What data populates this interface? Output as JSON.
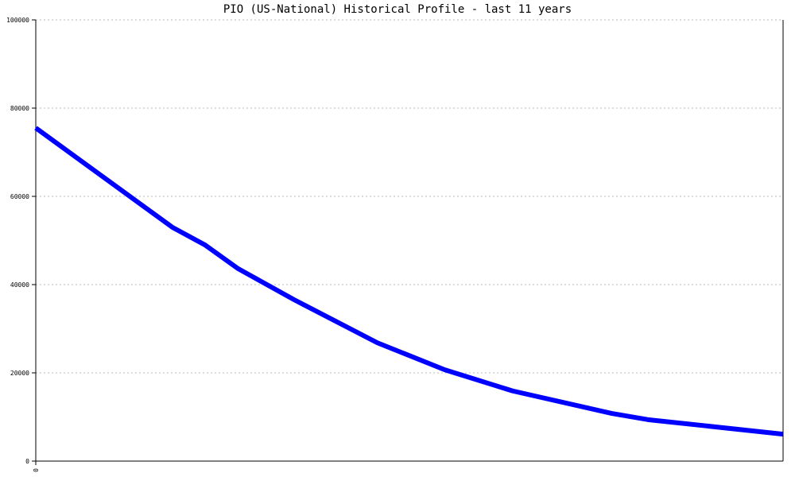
{
  "chart_data": {
    "type": "line",
    "title": "PIO (US-National) Historical Profile - last 11 years",
    "xlabel": "",
    "ylabel": "",
    "ylim": [
      0,
      100000
    ],
    "xlim": [
      0,
      11
    ],
    "yticks": [
      "0",
      "20000",
      "40000",
      "60000",
      "80000",
      "100000"
    ],
    "xticks": [
      "0"
    ],
    "grid": {
      "horizontal": true,
      "style": "dotted"
    },
    "line_color": "#0000ff",
    "series": [
      {
        "x": [
          0,
          2.01,
          2.49,
          2.98,
          3.8,
          5.03,
          6.02,
          7.02,
          8.48,
          9.01,
          11
        ],
        "values": [
          75500,
          53000,
          49000,
          43600,
          36600,
          26800,
          20700,
          15900,
          10800,
          9400,
          6100
        ]
      }
    ]
  }
}
